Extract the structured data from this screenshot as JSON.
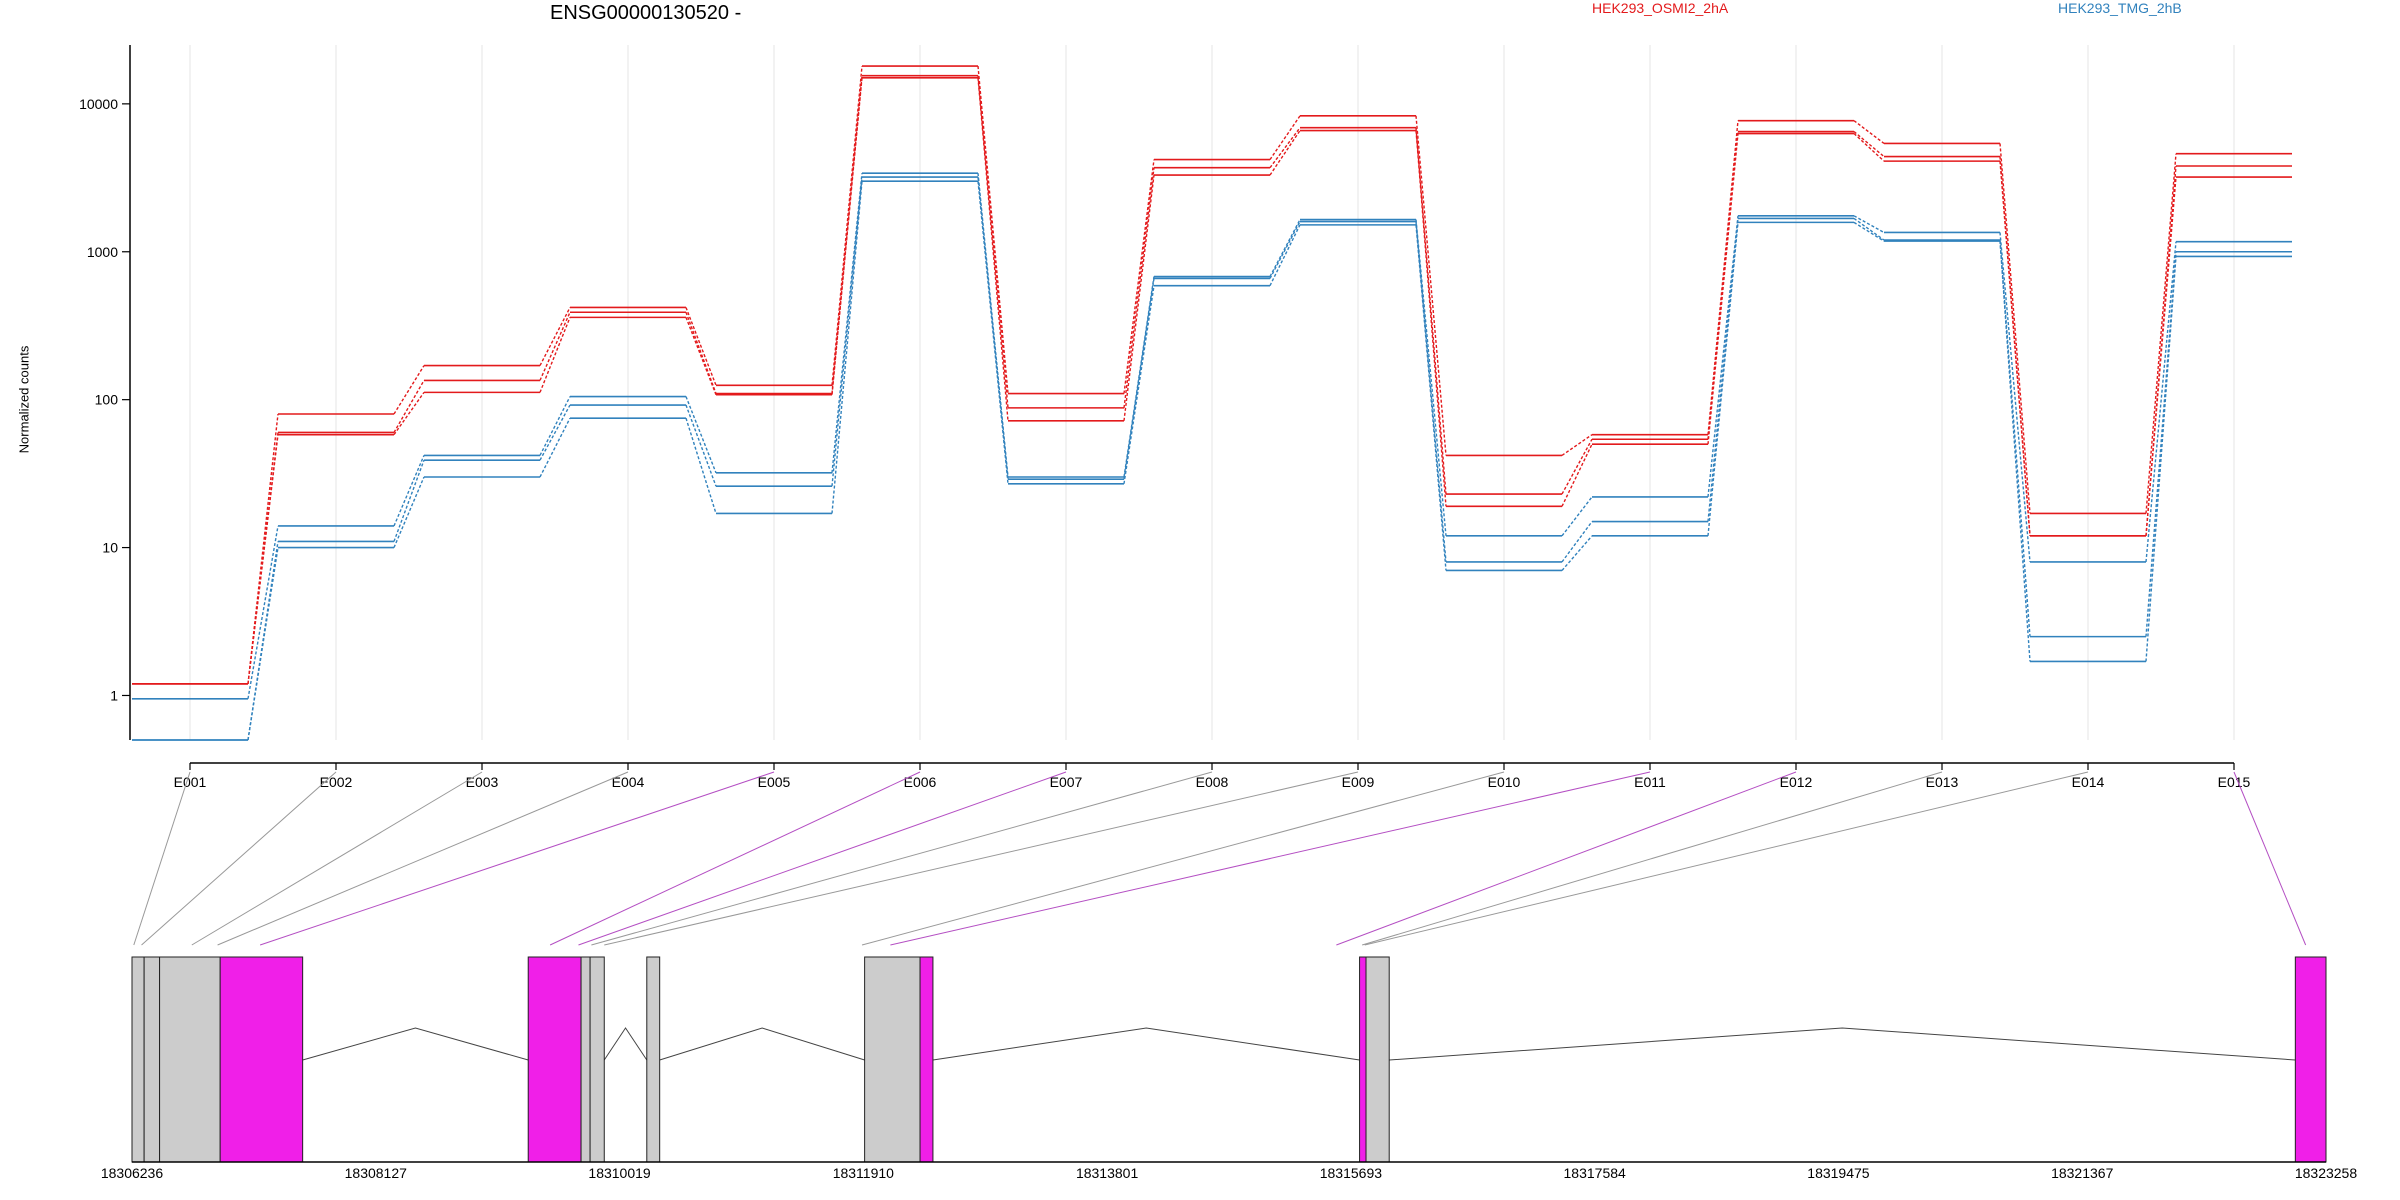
{
  "chart_data": {
    "type": "line",
    "title": "ENSG00000130520 -",
    "ylabel": "Normalized counts",
    "yscale": "log",
    "ylim": [
      0.5,
      25000
    ],
    "yticks": [
      {
        "label": "1",
        "value": 1
      },
      {
        "label": "10",
        "value": 10
      },
      {
        "label": "100",
        "value": 100
      },
      {
        "label": "1000",
        "value": 1000
      },
      {
        "label": "10000",
        "value": 10000
      }
    ],
    "categories": [
      "E001",
      "E002",
      "E003",
      "E004",
      "E005",
      "E006",
      "E007",
      "E008",
      "E009",
      "E010",
      "E011",
      "E012",
      "E013",
      "E014",
      "E015"
    ],
    "legend": [
      {
        "name": "HEK293_OSMI2_2hA",
        "color": "#e31a1c"
      },
      {
        "name": "HEK293_TMG_2hB",
        "color": "#3182bd"
      }
    ],
    "series": [
      {
        "group": 0,
        "color": "#e31a1c",
        "values": [
          1.2,
          80,
          170,
          420,
          125,
          18000,
          110,
          4200,
          8300,
          42,
          58,
          7700,
          5400,
          17,
          4600
        ]
      },
      {
        "group": 0,
        "color": "#e31a1c",
        "values": [
          1.2,
          60,
          135,
          390,
          110,
          15500,
          88,
          3700,
          6900,
          23,
          54,
          6500,
          4400,
          12,
          3800
        ]
      },
      {
        "group": 0,
        "color": "#e31a1c",
        "values": [
          1.2,
          58,
          112,
          360,
          108,
          15000,
          72,
          3300,
          6600,
          19,
          50,
          6300,
          4100,
          12,
          3200
        ]
      },
      {
        "group": 1,
        "color": "#3182bd",
        "values": [
          0.95,
          14,
          42,
          105,
          32,
          3400,
          30,
          680,
          1650,
          12,
          22,
          1750,
          1350,
          8,
          1170
        ]
      },
      {
        "group": 1,
        "color": "#3182bd",
        "values": [
          0.5,
          11,
          39,
          92,
          26,
          3200,
          29,
          660,
          1600,
          8,
          15,
          1680,
          1200,
          2.5,
          1000
        ]
      },
      {
        "group": 1,
        "color": "#3182bd",
        "values": [
          0.5,
          10,
          30,
          75,
          17,
          3000,
          27,
          590,
          1520,
          7,
          12,
          1580,
          1180,
          1.7,
          930
        ]
      }
    ],
    "genomic_axis": {
      "labels": [
        "18306236",
        "18308127",
        "18310019",
        "18311910",
        "18313801",
        "18315693",
        "18317584",
        "18319475",
        "18321367",
        "18323258"
      ],
      "range": [
        18306236,
        18323258
      ]
    },
    "exon_links": [
      {
        "exon": "E001",
        "position": 18306250,
        "significant": false
      },
      {
        "exon": "E002",
        "position": 18306310,
        "significant": false
      },
      {
        "exon": "E003",
        "position": 18306700,
        "significant": false
      },
      {
        "exon": "E004",
        "position": 18306900,
        "significant": false
      },
      {
        "exon": "E005",
        "position": 18307230,
        "significant": true
      },
      {
        "exon": "E006",
        "position": 18309480,
        "significant": true
      },
      {
        "exon": "E007",
        "position": 18309700,
        "significant": true
      },
      {
        "exon": "E008",
        "position": 18309800,
        "significant": false
      },
      {
        "exon": "E009",
        "position": 18309900,
        "significant": false
      },
      {
        "exon": "E010",
        "position": 18311900,
        "significant": false
      },
      {
        "exon": "E011",
        "position": 18312120,
        "significant": true
      },
      {
        "exon": "E012",
        "position": 18315580,
        "significant": true
      },
      {
        "exon": "E013",
        "position": 18315780,
        "significant": false
      },
      {
        "exon": "E014",
        "position": 18315800,
        "significant": false
      },
      {
        "exon": "E015",
        "position": 18323100,
        "significant": true
      }
    ],
    "gene_blocks": [
      {
        "start": 18306236,
        "end": 18306330,
        "significant": false
      },
      {
        "start": 18306330,
        "end": 18306450,
        "significant": false
      },
      {
        "start": 18306450,
        "end": 18306920,
        "significant": false
      },
      {
        "start": 18306920,
        "end": 18307560,
        "significant": true
      },
      {
        "start": 18309310,
        "end": 18309720,
        "significant": true
      },
      {
        "start": 18309720,
        "end": 18309790,
        "significant": false
      },
      {
        "start": 18309790,
        "end": 18309900,
        "significant": false
      },
      {
        "start": 18310230,
        "end": 18310330,
        "significant": false
      },
      {
        "start": 18311920,
        "end": 18312350,
        "significant": false
      },
      {
        "start": 18312350,
        "end": 18312450,
        "significant": true
      },
      {
        "start": 18315760,
        "end": 18315810,
        "significant": true
      },
      {
        "start": 18315810,
        "end": 18315990,
        "significant": false
      },
      {
        "start": 18323020,
        "end": 18323258,
        "significant": true
      }
    ],
    "introns": [
      {
        "from": 18307560,
        "to": 18309310
      },
      {
        "from": 18309900,
        "to": 18310230
      },
      {
        "from": 18310330,
        "to": 18311920
      },
      {
        "from": 18312450,
        "to": 18315760
      },
      {
        "from": 18315990,
        "to": 18323020
      }
    ],
    "colors": {
      "significant_exon": "#f01fe8",
      "exon": "#cccccc",
      "significant_link": "#b44fc3",
      "link": "#999999",
      "grid": "#e6e6e6",
      "axis": "#000000",
      "intron": "#444444"
    }
  }
}
